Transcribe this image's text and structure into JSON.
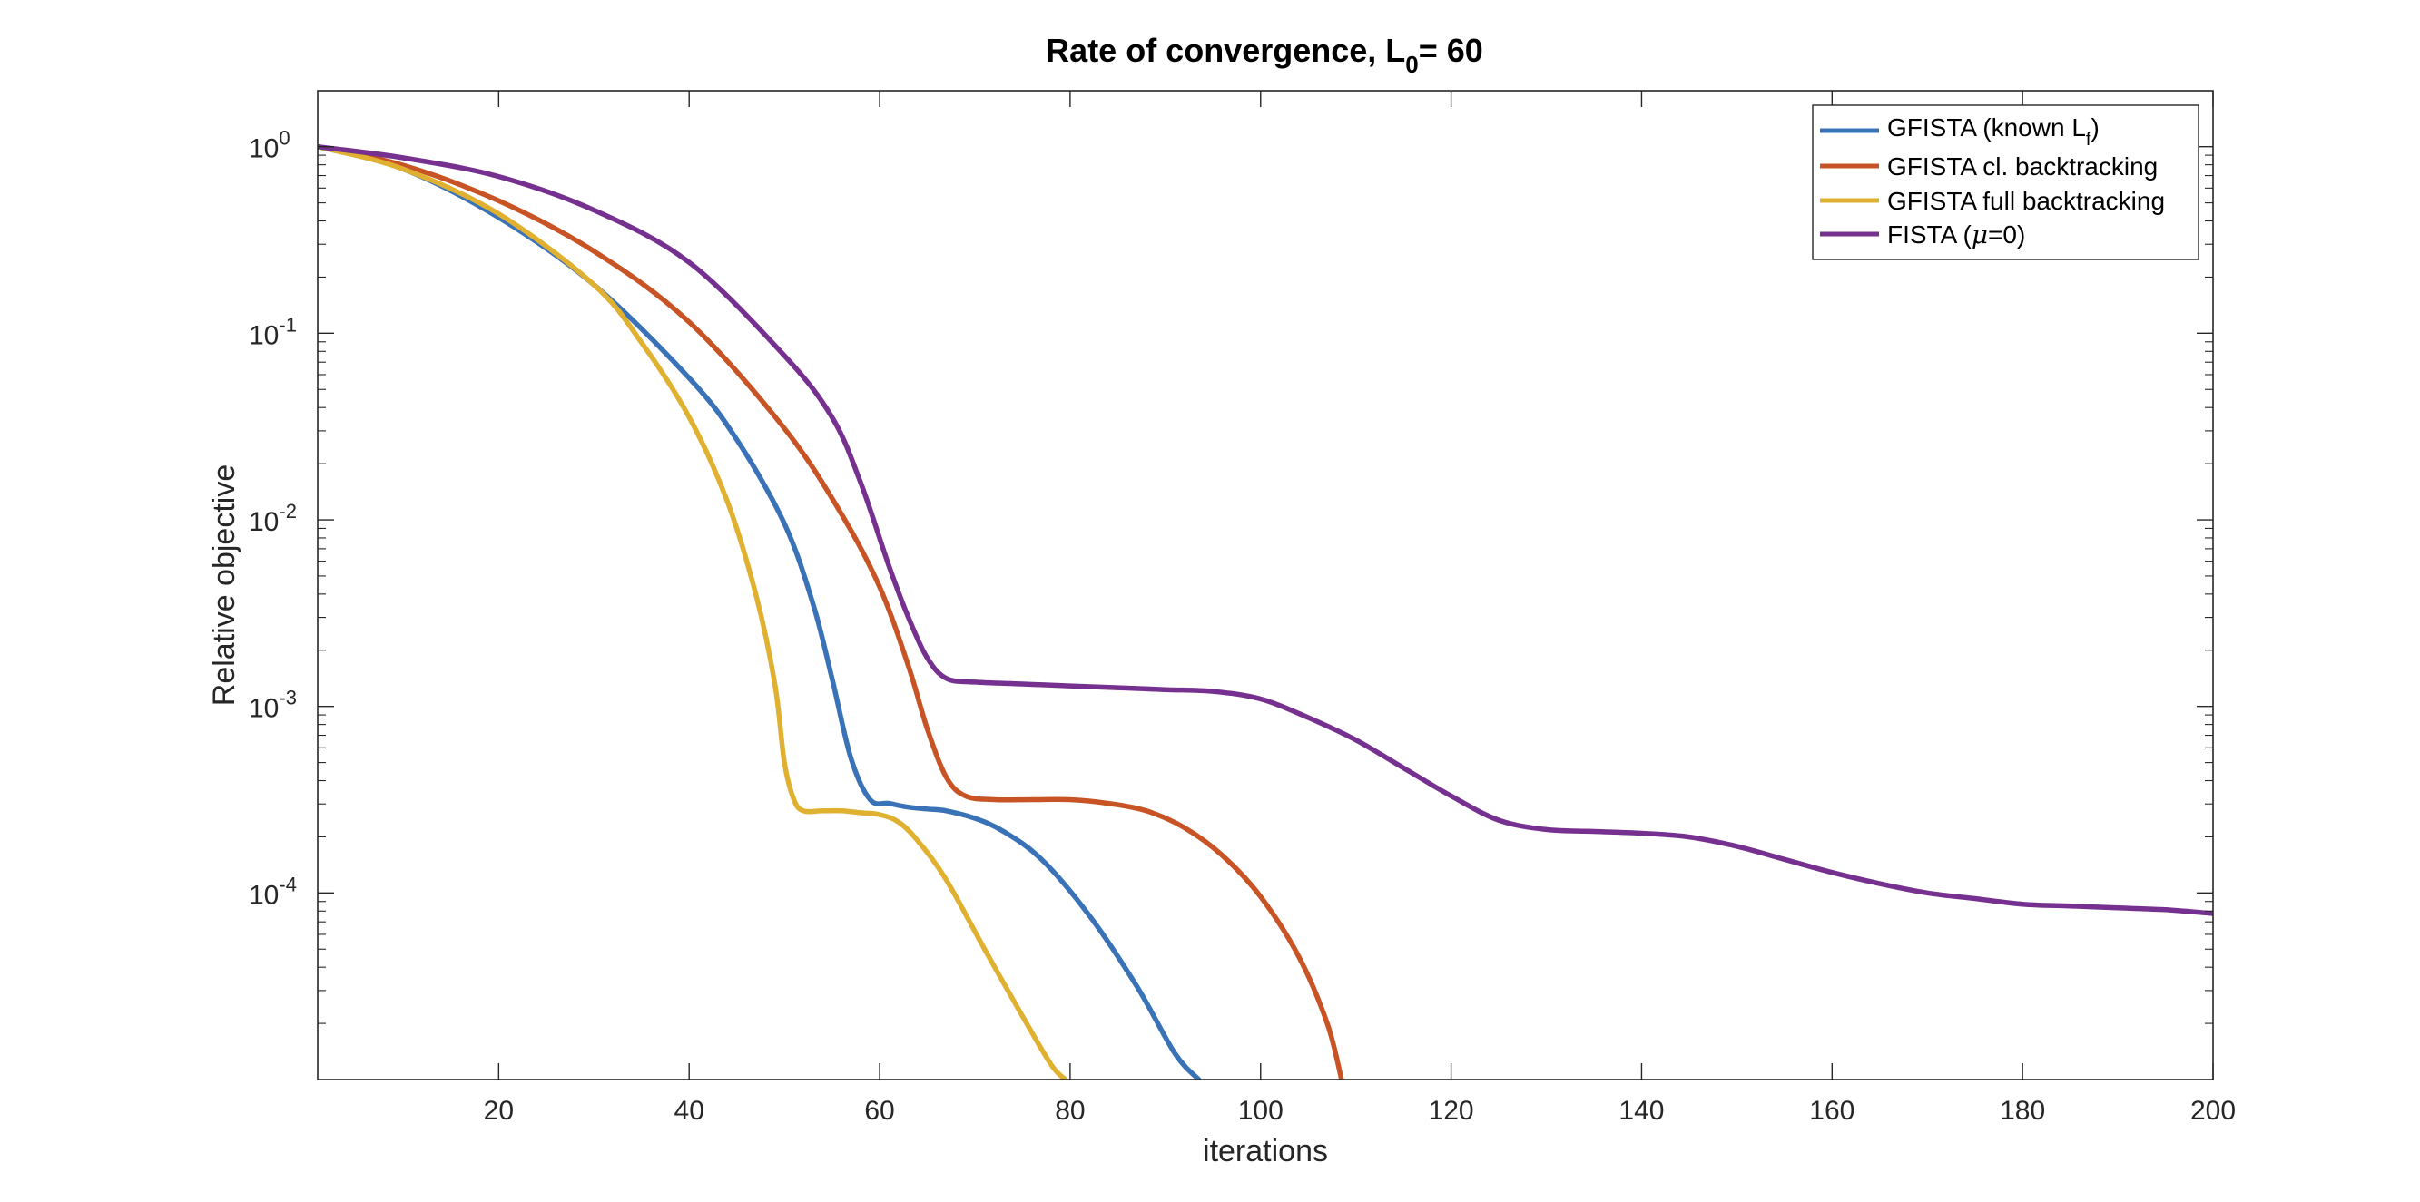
{
  "chart_data": {
    "type": "line",
    "title": "Rate of convergence, L",
    "title_subscript": "0",
    "title_suffix": "= 60",
    "xlabel": "iterations",
    "ylabel": "Relative objective",
    "xlim": [
      1,
      200
    ],
    "ylim_log10": [
      -5.0,
      0.3
    ],
    "yscale": "log",
    "grid": false,
    "legend_position": "top-right",
    "x_ticks": [
      20,
      40,
      60,
      80,
      100,
      120,
      140,
      160,
      180,
      200
    ],
    "y_ticks": [
      {
        "base": "10",
        "exp": "0",
        "value_log10": 0
      },
      {
        "base": "10",
        "exp": "-1",
        "value_log10": -1
      },
      {
        "base": "10",
        "exp": "-2",
        "value_log10": -2
      },
      {
        "base": "10",
        "exp": "-3",
        "value_log10": -3
      },
      {
        "base": "10",
        "exp": "-4",
        "value_log10": -4
      }
    ],
    "series": [
      {
        "name": "GFISTA (known L",
        "name_subscript": "f",
        "name_suffix": ")",
        "color": "#3a72b8",
        "points_log10": [
          [
            1,
            0
          ],
          [
            10,
            -0.12
          ],
          [
            20,
            -0.38
          ],
          [
            30,
            -0.74
          ],
          [
            40,
            -1.24
          ],
          [
            45,
            -1.57
          ],
          [
            50,
            -2.02
          ],
          [
            53,
            -2.45
          ],
          [
            55,
            -2.85
          ],
          [
            57,
            -3.28
          ],
          [
            59,
            -3.5
          ],
          [
            61,
            -3.52
          ],
          [
            63,
            -3.54
          ],
          [
            65,
            -3.55
          ],
          [
            67,
            -3.56
          ],
          [
            70,
            -3.6
          ],
          [
            73,
            -3.67
          ],
          [
            77,
            -3.82
          ],
          [
            82,
            -4.12
          ],
          [
            87,
            -4.5
          ],
          [
            91,
            -4.86
          ],
          [
            93.5,
            -5.0
          ]
        ]
      },
      {
        "name": "GFISTA cl. backtracking",
        "color": "#c85426",
        "points_log10": [
          [
            1,
            0
          ],
          [
            10,
            -0.1
          ],
          [
            20,
            -0.29
          ],
          [
            30,
            -0.56
          ],
          [
            40,
            -0.94
          ],
          [
            50,
            -1.51
          ],
          [
            56,
            -1.97
          ],
          [
            60,
            -2.36
          ],
          [
            63,
            -2.78
          ],
          [
            65,
            -3.12
          ],
          [
            67,
            -3.38
          ],
          [
            69,
            -3.48
          ],
          [
            72,
            -3.5
          ],
          [
            76,
            -3.5
          ],
          [
            80,
            -3.5
          ],
          [
            84,
            -3.52
          ],
          [
            88,
            -3.56
          ],
          [
            92,
            -3.65
          ],
          [
            96,
            -3.8
          ],
          [
            100,
            -4.02
          ],
          [
            104,
            -4.34
          ],
          [
            107,
            -4.7
          ],
          [
            108.5,
            -5.0
          ]
        ]
      },
      {
        "name": "GFISTA full backtracking",
        "color": "#e0b131",
        "points_log10": [
          [
            1,
            0
          ],
          [
            10,
            -0.12
          ],
          [
            20,
            -0.36
          ],
          [
            30,
            -0.74
          ],
          [
            35,
            -1.05
          ],
          [
            40,
            -1.45
          ],
          [
            44,
            -1.9
          ],
          [
            47,
            -2.4
          ],
          [
            49,
            -2.88
          ],
          [
            50,
            -3.3
          ],
          [
            51,
            -3.5
          ],
          [
            52,
            -3.56
          ],
          [
            54,
            -3.56
          ],
          [
            56,
            -3.56
          ],
          [
            58,
            -3.57
          ],
          [
            60,
            -3.58
          ],
          [
            62,
            -3.62
          ],
          [
            64,
            -3.72
          ],
          [
            67,
            -3.93
          ],
          [
            71,
            -4.3
          ],
          [
            75,
            -4.66
          ],
          [
            78,
            -4.92
          ],
          [
            79.5,
            -5.0
          ]
        ]
      },
      {
        "name": "FISTA (",
        "name_greek": "μ",
        "name_suffix": "=0)",
        "color": "#76308f",
        "points_log10": [
          [
            1,
            0
          ],
          [
            10,
            -0.06
          ],
          [
            20,
            -0.16
          ],
          [
            30,
            -0.34
          ],
          [
            40,
            -0.62
          ],
          [
            50,
            -1.12
          ],
          [
            55,
            -1.45
          ],
          [
            58,
            -1.8
          ],
          [
            61,
            -2.25
          ],
          [
            63,
            -2.52
          ],
          [
            65,
            -2.74
          ],
          [
            67,
            -2.85
          ],
          [
            70,
            -2.87
          ],
          [
            75,
            -2.88
          ],
          [
            80,
            -2.89
          ],
          [
            85,
            -2.9
          ],
          [
            90,
            -2.91
          ],
          [
            95,
            -2.92
          ],
          [
            100,
            -2.96
          ],
          [
            105,
            -3.06
          ],
          [
            110,
            -3.18
          ],
          [
            115,
            -3.33
          ],
          [
            120,
            -3.48
          ],
          [
            125,
            -3.61
          ],
          [
            130,
            -3.66
          ],
          [
            135,
            -3.67
          ],
          [
            140,
            -3.68
          ],
          [
            145,
            -3.7
          ],
          [
            150,
            -3.75
          ],
          [
            155,
            -3.82
          ],
          [
            160,
            -3.89
          ],
          [
            165,
            -3.95
          ],
          [
            170,
            -4.0
          ],
          [
            175,
            -4.03
          ],
          [
            180,
            -4.06
          ],
          [
            185,
            -4.07
          ],
          [
            190,
            -4.08
          ],
          [
            195,
            -4.09
          ],
          [
            200,
            -4.11
          ]
        ]
      }
    ]
  }
}
